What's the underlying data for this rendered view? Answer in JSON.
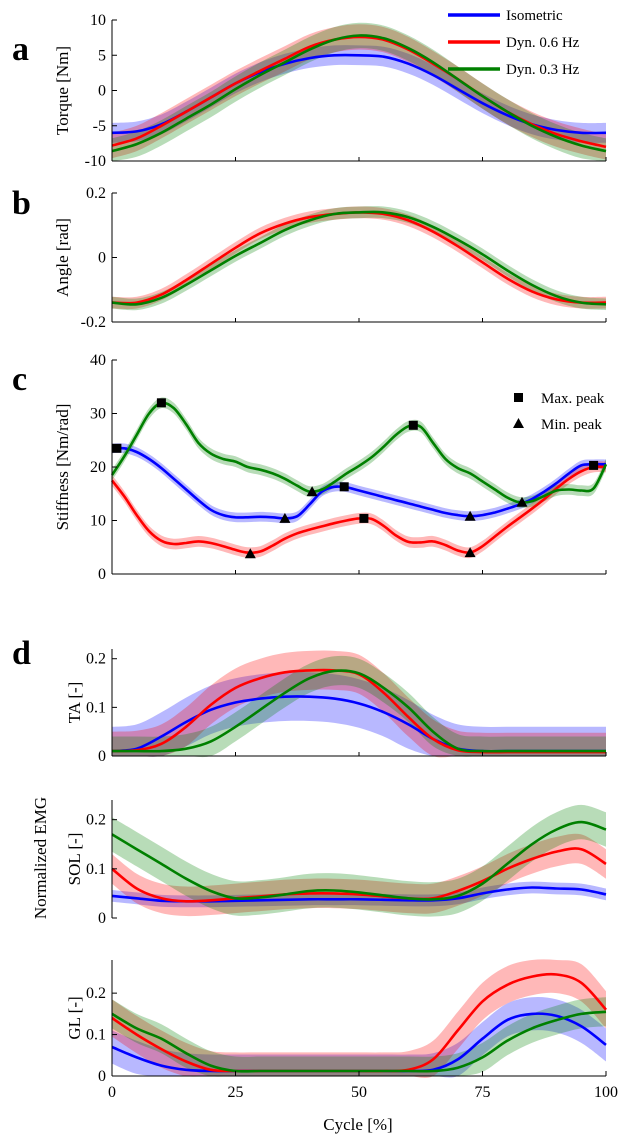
{
  "colors": {
    "isometric": "#0000ff",
    "dyn06": "#ff0000",
    "dyn03": "#008000",
    "axis": "#000000"
  },
  "legend": {
    "entries": [
      {
        "label": "Isometric",
        "color": "#0000ff"
      },
      {
        "label": "Dyn. 0.6 Hz",
        "color": "#ff0000"
      },
      {
        "label": "Dyn. 0.3 Hz",
        "color": "#008000"
      }
    ]
  },
  "markers_legend": {
    "max_peak": "Max. peak",
    "min_peak": "Min. peak"
  },
  "shared": {
    "xlabel": "Cycle [%]",
    "emg_group_label": "Normalized EMG",
    "xticks": [
      "0",
      "25",
      "50",
      "75",
      "100"
    ]
  },
  "chart_data": [
    {
      "panel": "a",
      "type": "line",
      "ylabel": "Torque [Nm]",
      "xlim": [
        0,
        100
      ],
      "ylim": [
        -10,
        10
      ],
      "yticks": [
        "10",
        "5",
        "0",
        "-5",
        "-10"
      ],
      "x": [
        0,
        5,
        10,
        15,
        20,
        25,
        30,
        35,
        40,
        45,
        50,
        55,
        60,
        65,
        70,
        75,
        80,
        85,
        90,
        95,
        100
      ],
      "series": [
        {
          "name": "Isometric",
          "color": "#0000ff",
          "band": 1.4,
          "values": [
            -6,
            -5.8,
            -4.8,
            -3,
            -1,
            1,
            2.6,
            3.8,
            4.6,
            5,
            5,
            4.8,
            3.8,
            2.2,
            0.2,
            -1.8,
            -3.5,
            -4.8,
            -5.6,
            -6,
            -6
          ]
        },
        {
          "name": "Dyn. 0.6 Hz",
          "color": "#ff0000",
          "band": 1.8,
          "values": [
            -7.8,
            -6.8,
            -5,
            -3,
            -1,
            1,
            2.8,
            4.5,
            6.2,
            7.2,
            7.6,
            7.2,
            5.8,
            3.8,
            1.6,
            -0.8,
            -3,
            -4.8,
            -6.2,
            -7.2,
            -8
          ]
        },
        {
          "name": "Dyn. 0.3 Hz",
          "color": "#008000",
          "band": 1.8,
          "values": [
            -8.6,
            -7.6,
            -6,
            -4,
            -2,
            0.2,
            2.2,
            4,
            5.8,
            7.2,
            7.8,
            7.4,
            6,
            4,
            1.6,
            -0.8,
            -3,
            -5,
            -6.6,
            -7.8,
            -8.6
          ]
        }
      ]
    },
    {
      "panel": "b",
      "type": "line",
      "ylabel": "Angle [rad]",
      "xlim": [
        0,
        100
      ],
      "ylim": [
        -0.2,
        0.2
      ],
      "yticks": [
        "0.2",
        "0",
        "-0.2"
      ],
      "x": [
        0,
        5,
        10,
        15,
        20,
        25,
        30,
        35,
        40,
        45,
        50,
        55,
        60,
        65,
        70,
        75,
        80,
        85,
        90,
        95,
        100
      ],
      "series": [
        {
          "name": "Dyn. 0.6 Hz",
          "color": "#ff0000",
          "band": 0.018,
          "values": [
            -0.14,
            -0.14,
            -0.115,
            -0.07,
            -0.02,
            0.03,
            0.075,
            0.105,
            0.125,
            0.135,
            0.14,
            0.135,
            0.115,
            0.08,
            0.035,
            -0.015,
            -0.065,
            -0.105,
            -0.13,
            -0.14,
            -0.14
          ]
        },
        {
          "name": "Dyn. 0.3 Hz",
          "color": "#008000",
          "band": 0.018,
          "values": [
            -0.14,
            -0.145,
            -0.125,
            -0.085,
            -0.04,
            0.005,
            0.045,
            0.085,
            0.115,
            0.135,
            0.14,
            0.14,
            0.125,
            0.095,
            0.055,
            0.01,
            -0.04,
            -0.085,
            -0.12,
            -0.14,
            -0.145
          ]
        }
      ]
    },
    {
      "panel": "c",
      "type": "line",
      "ylabel": "Stiffness [Nm/rad]",
      "xlim": [
        0,
        100
      ],
      "ylim": [
        0,
        40
      ],
      "yticks": [
        "40",
        "30",
        "20",
        "10",
        "0"
      ],
      "x": [
        0,
        2.5,
        5,
        7.5,
        10,
        12.5,
        15,
        17.5,
        20,
        22.5,
        25,
        27.5,
        30,
        32.5,
        35,
        37.5,
        40,
        42.5,
        45,
        47.5,
        50,
        52.5,
        55,
        57.5,
        60,
        62.5,
        65,
        67.5,
        70,
        72.5,
        75,
        77.5,
        80,
        82.5,
        85,
        87.5,
        90,
        92.5,
        95,
        97.5,
        100
      ],
      "series": [
        {
          "name": "Isometric",
          "color": "#0000ff",
          "band": 0.9,
          "values": [
            23.5,
            23.5,
            22.8,
            21.5,
            19.8,
            17.8,
            15.8,
            13.8,
            12,
            11,
            10.6,
            10.6,
            10.7,
            10.6,
            10.4,
            10.8,
            13,
            15.4,
            16.3,
            16.2,
            15.6,
            15,
            14.4,
            13.8,
            13.2,
            12.6,
            12,
            11.4,
            11,
            10.8,
            11,
            11.5,
            12.2,
            13,
            14,
            15.4,
            17,
            18.8,
            20.3,
            20.5,
            20.5
          ]
        },
        {
          "name": "Dyn. 0.6 Hz",
          "color": "#ff0000",
          "band": 1.0,
          "values": [
            17.5,
            14.5,
            11,
            8,
            6.2,
            5.6,
            5.8,
            6.1,
            5.8,
            5.2,
            4.5,
            4,
            4.2,
            5.3,
            6.6,
            7.6,
            8.3,
            8.9,
            9.5,
            10,
            10.4,
            10.3,
            9,
            7.2,
            6,
            5.9,
            6.1,
            5.4,
            4.4,
            4,
            5.2,
            7,
            8.8,
            10.5,
            12.2,
            14,
            16,
            17.8,
            19.2,
            20,
            20
          ]
        },
        {
          "name": "Dyn. 0.3 Hz",
          "color": "#008000",
          "band": 1.0,
          "values": [
            18.5,
            22,
            26,
            30,
            32,
            31,
            28,
            24.5,
            22.5,
            21.5,
            21,
            20,
            19.5,
            18.8,
            17.8,
            16.5,
            15.4,
            15.8,
            17.2,
            18.8,
            20.2,
            21.8,
            23.8,
            26,
            27.6,
            27.5,
            24.5,
            21.5,
            19.8,
            18.8,
            17.3,
            15.8,
            14.3,
            13.4,
            13.6,
            14.6,
            15.6,
            15.8,
            15.6,
            16,
            20.5
          ]
        }
      ],
      "max_peaks": [
        {
          "series": "Isometric",
          "x": 1,
          "y": 23.5
        },
        {
          "series": "Isometric",
          "x": 47,
          "y": 16.3
        },
        {
          "series": "Isometric",
          "x": 97.5,
          "y": 20.3
        },
        {
          "series": "Dyn. 0.6 Hz",
          "x": 51,
          "y": 10.4
        },
        {
          "series": "Dyn. 0.3 Hz",
          "x": 10,
          "y": 32
        },
        {
          "series": "Dyn. 0.3 Hz",
          "x": 61,
          "y": 27.8
        }
      ],
      "min_peaks": [
        {
          "series": "Isometric",
          "x": 35,
          "y": 10.4
        },
        {
          "series": "Isometric",
          "x": 72.5,
          "y": 10.8
        },
        {
          "series": "Dyn. 0.6 Hz",
          "x": 28,
          "y": 3.8
        },
        {
          "series": "Dyn. 0.6 Hz",
          "x": 72.5,
          "y": 4
        },
        {
          "series": "Dyn. 0.3 Hz",
          "x": 40.5,
          "y": 15.4
        },
        {
          "series": "Dyn. 0.3 Hz",
          "x": 83,
          "y": 13.4
        }
      ]
    },
    {
      "panel": "d-TA",
      "type": "line",
      "ylabel": "TA [-]",
      "xlim": [
        0,
        100
      ],
      "ylim": [
        0,
        0.22
      ],
      "yticks": [
        "0.2",
        "0.1",
        "0"
      ],
      "x": [
        0,
        5,
        10,
        15,
        20,
        25,
        30,
        35,
        40,
        45,
        50,
        55,
        60,
        65,
        70,
        75,
        80,
        85,
        90,
        95,
        100
      ],
      "series": [
        {
          "name": "Isometric",
          "color": "#0000ff",
          "band": 0.05,
          "values": [
            0.01,
            0.015,
            0.04,
            0.07,
            0.095,
            0.11,
            0.118,
            0.122,
            0.122,
            0.118,
            0.108,
            0.09,
            0.065,
            0.035,
            0.015,
            0.01,
            0.01,
            0.01,
            0.01,
            0.01,
            0.01
          ]
        },
        {
          "name": "Dyn. 0.6 Hz",
          "color": "#ff0000",
          "band": 0.04,
          "values": [
            0.01,
            0.012,
            0.025,
            0.06,
            0.105,
            0.14,
            0.16,
            0.172,
            0.176,
            0.176,
            0.168,
            0.13,
            0.08,
            0.035,
            0.012,
            0.008,
            0.008,
            0.008,
            0.008,
            0.008,
            0.008
          ]
        },
        {
          "name": "Dyn. 0.3 Hz",
          "color": "#008000",
          "band": 0.03,
          "values": [
            0.01,
            0.01,
            0.01,
            0.015,
            0.03,
            0.06,
            0.095,
            0.13,
            0.16,
            0.175,
            0.17,
            0.14,
            0.1,
            0.05,
            0.015,
            0.01,
            0.01,
            0.01,
            0.01,
            0.01,
            0.01
          ]
        }
      ]
    },
    {
      "panel": "d-SOL",
      "type": "line",
      "ylabel": "SOL [-]",
      "xlim": [
        0,
        100
      ],
      "ylim": [
        0,
        0.24
      ],
      "yticks": [
        "0.2",
        "0.1",
        "0"
      ],
      "x": [
        0,
        5,
        10,
        15,
        20,
        25,
        30,
        35,
        40,
        45,
        50,
        55,
        60,
        65,
        70,
        75,
        80,
        85,
        90,
        95,
        100
      ],
      "series": [
        {
          "name": "Isometric",
          "color": "#0000ff",
          "band": 0.012,
          "values": [
            0.045,
            0.04,
            0.035,
            0.034,
            0.034,
            0.035,
            0.036,
            0.037,
            0.038,
            0.038,
            0.038,
            0.037,
            0.036,
            0.036,
            0.04,
            0.05,
            0.058,
            0.062,
            0.06,
            0.058,
            0.048
          ]
        },
        {
          "name": "Dyn. 0.6 Hz",
          "color": "#ff0000",
          "band": 0.03,
          "values": [
            0.1,
            0.06,
            0.04,
            0.034,
            0.036,
            0.04,
            0.044,
            0.048,
            0.05,
            0.05,
            0.048,
            0.044,
            0.04,
            0.04,
            0.055,
            0.075,
            0.1,
            0.12,
            0.135,
            0.14,
            0.11
          ]
        },
        {
          "name": "Dyn. 0.3 Hz",
          "color": "#008000",
          "band": 0.035,
          "values": [
            0.17,
            0.14,
            0.11,
            0.08,
            0.055,
            0.04,
            0.042,
            0.048,
            0.055,
            0.056,
            0.052,
            0.046,
            0.04,
            0.038,
            0.045,
            0.07,
            0.11,
            0.15,
            0.18,
            0.195,
            0.18
          ]
        }
      ]
    },
    {
      "panel": "d-GL",
      "type": "line",
      "ylabel": "GL [-]",
      "xlim": [
        0,
        100
      ],
      "ylim": [
        0,
        0.28
      ],
      "yticks": [
        "0.2",
        "0.1",
        "0"
      ],
      "x": [
        0,
        5,
        10,
        15,
        20,
        25,
        30,
        35,
        40,
        45,
        50,
        55,
        60,
        65,
        70,
        75,
        80,
        85,
        90,
        95,
        100
      ],
      "series": [
        {
          "name": "Isometric",
          "color": "#0000ff",
          "band": 0.04,
          "values": [
            0.07,
            0.045,
            0.025,
            0.015,
            0.012,
            0.012,
            0.012,
            0.012,
            0.012,
            0.012,
            0.012,
            0.012,
            0.012,
            0.015,
            0.04,
            0.09,
            0.135,
            0.15,
            0.145,
            0.12,
            0.075
          ]
        },
        {
          "name": "Dyn. 0.6 Hz",
          "color": "#ff0000",
          "band": 0.045,
          "values": [
            0.14,
            0.1,
            0.065,
            0.035,
            0.015,
            0.012,
            0.012,
            0.012,
            0.012,
            0.012,
            0.012,
            0.012,
            0.015,
            0.04,
            0.11,
            0.18,
            0.22,
            0.24,
            0.245,
            0.225,
            0.16
          ]
        },
        {
          "name": "Dyn. 0.3 Hz",
          "color": "#008000",
          "band": 0.035,
          "values": [
            0.15,
            0.115,
            0.09,
            0.055,
            0.025,
            0.012,
            0.012,
            0.012,
            0.012,
            0.012,
            0.012,
            0.012,
            0.012,
            0.012,
            0.02,
            0.045,
            0.085,
            0.115,
            0.135,
            0.15,
            0.155
          ]
        }
      ]
    }
  ]
}
